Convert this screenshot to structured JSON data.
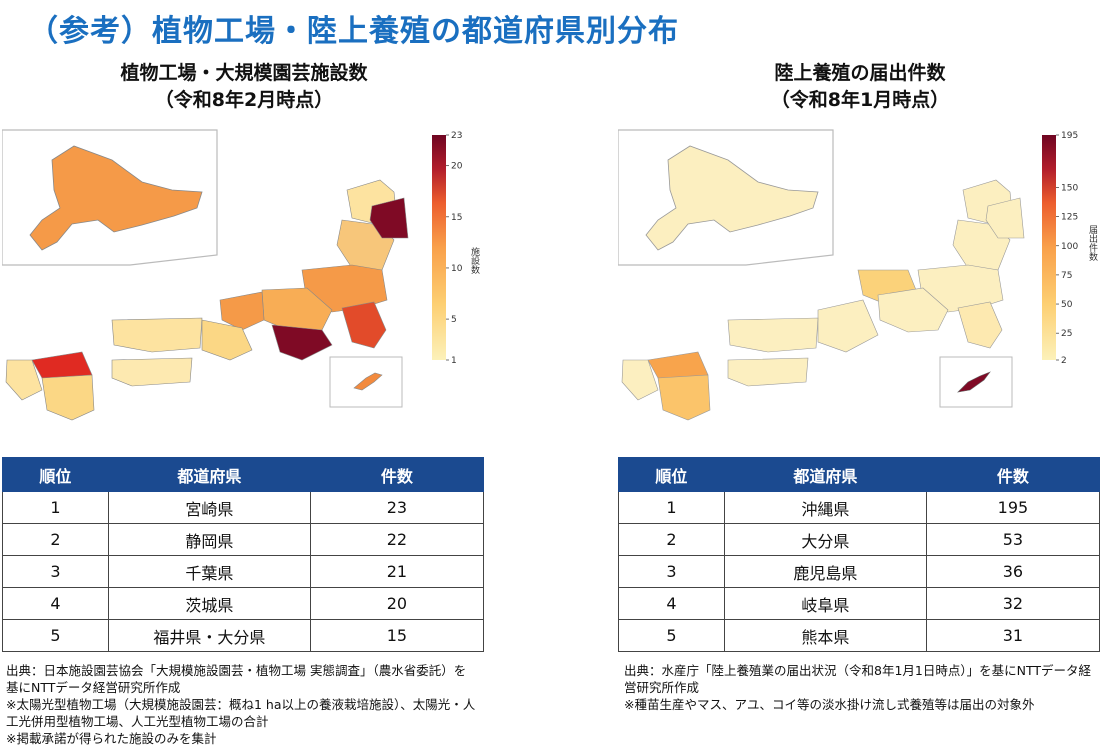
{
  "page_title": "（参考）植物工場・陸上養殖の都道府県別分布",
  "left": {
    "title_line1": "植物工場・大規模園芸施設数",
    "title_line2": "（令和8年2月時点）",
    "colorbar_label": "施設数",
    "colorbar_ticks": [
      "23",
      "20",
      "15",
      "10",
      "5",
      "1"
    ],
    "colorbar_tick_values": [
      23,
      20,
      15,
      10,
      5,
      1
    ],
    "colorbar_range": [
      1,
      23
    ],
    "colorbar_colors": [
      "#fcf1b9",
      "#fdcf72",
      "#f9a04a",
      "#ec5d2e",
      "#b11d2b",
      "#6f0522"
    ],
    "table": {
      "headers": [
        "順位",
        "都道府県",
        "件数"
      ],
      "rows": [
        [
          "1",
          "宮崎県",
          "23"
        ],
        [
          "2",
          "静岡県",
          "22"
        ],
        [
          "3",
          "千葉県",
          "21"
        ],
        [
          "4",
          "茨城県",
          "20"
        ],
        [
          "5",
          "福井県・大分県",
          "15"
        ]
      ]
    },
    "notes": [
      "出典：日本施設園芸協会「大規模施設園芸・植物工場 実態調査」（農水省委託）を基にNTTデータ経営研究所作成",
      "※太陽光型植物工場（大規模施設園芸：概ね1 ha以上の養液栽培施設）、太陽光・人工光併用型植物工場、人工光型植物工場の合計",
      "※掲載承諾が得られた施設のみを集計"
    ]
  },
  "right": {
    "title_line1": "陸上養殖の届出件数",
    "title_line2": "（令和8年1月時点）",
    "colorbar_label": "届出件数",
    "colorbar_ticks": [
      "195",
      "150",
      "125",
      "100",
      "75",
      "50",
      "25",
      "2"
    ],
    "colorbar_tick_values": [
      195,
      150,
      125,
      100,
      75,
      50,
      25,
      2
    ],
    "colorbar_range": [
      2,
      195
    ],
    "colorbar_colors": [
      "#fcf1b9",
      "#fdcf72",
      "#f9a04a",
      "#ec5d2e",
      "#b11d2b",
      "#6f0522"
    ],
    "table": {
      "headers": [
        "順位",
        "都道府県",
        "件数"
      ],
      "rows": [
        [
          "1",
          "沖縄県",
          "195"
        ],
        [
          "2",
          "大分県",
          "53"
        ],
        [
          "3",
          "鹿児島県",
          "36"
        ],
        [
          "4",
          "岐阜県",
          "32"
        ],
        [
          "5",
          "熊本県",
          "31"
        ]
      ]
    },
    "notes": [
      "出典：水産庁「陸上養殖業の届出状況（令和8年1月1日時点）」を基にNTTデータ経営研究所作成",
      "※種苗生産やマス、アユ、コイ等の淡水掛け流し式養殖等は届出の対象外"
    ]
  }
}
